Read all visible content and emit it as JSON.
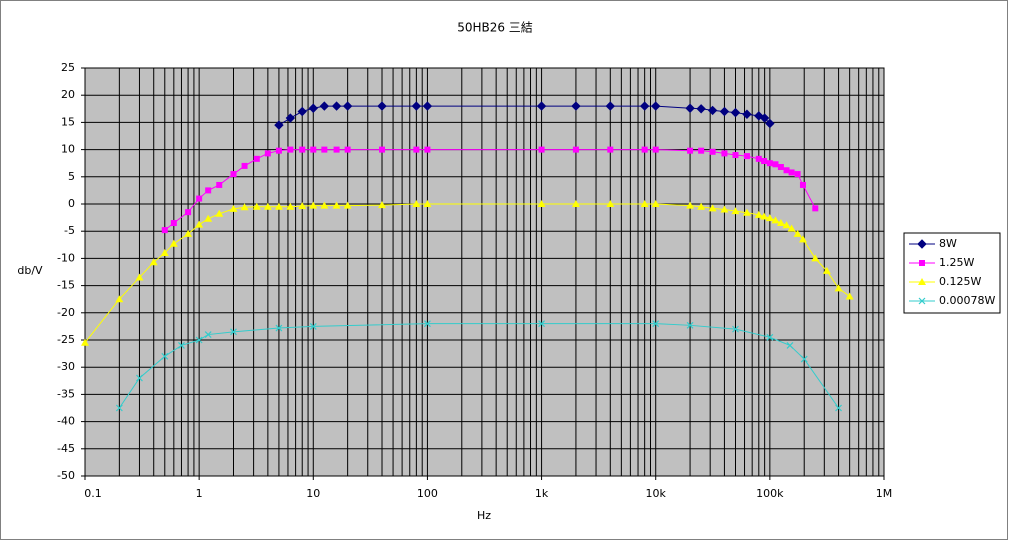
{
  "chart_data": {
    "type": "line",
    "title": "50HB26 三結",
    "x_label": "Hz",
    "y_label": "db/V",
    "xscale": "log",
    "xlim": [
      0.1,
      1000000
    ],
    "xticks": [
      0.1,
      1,
      10,
      100,
      {
        "value": 1000,
        "label": "1k"
      },
      {
        "value": 10000,
        "label": "10k"
      },
      {
        "value": 100000,
        "label": "100k"
      },
      {
        "value": 1000000,
        "label": "1M"
      }
    ],
    "ylim": [
      -50,
      25
    ],
    "yticks": [
      -50,
      -45,
      -40,
      -35,
      -30,
      -25,
      -20,
      -15,
      -10,
      -5,
      0,
      5,
      10,
      15,
      20,
      25
    ],
    "grid": true,
    "minor_grid": true,
    "plot_background": "#c0c0c0",
    "legend": "right",
    "series": [
      {
        "name": "8W",
        "color": "#000080",
        "marker": "diamond",
        "x": [
          5,
          6.3,
          8,
          10,
          12.5,
          16,
          20,
          40,
          80,
          100,
          1000,
          2000,
          4000,
          8000,
          10000,
          20000,
          25000,
          31500,
          40000,
          50000,
          63000,
          80000,
          90000,
          100000
        ],
        "values": [
          14.5,
          15.8,
          17,
          17.6,
          18,
          18,
          18,
          18,
          18,
          18,
          18,
          18,
          18,
          18,
          18,
          17.6,
          17.5,
          17.2,
          17,
          16.8,
          16.5,
          16.2,
          15.8,
          14.8
        ]
      },
      {
        "name": "1.25W",
        "color": "#ff00ff",
        "marker": "square",
        "x": [
          0.5,
          0.6,
          0.8,
          1,
          1.2,
          1.5,
          2,
          2.5,
          3.2,
          4,
          5,
          6.3,
          8,
          10,
          12.5,
          16,
          20,
          40,
          80,
          100,
          1000,
          2000,
          4000,
          8000,
          10000,
          20000,
          25000,
          31500,
          40000,
          50000,
          63000,
          80000,
          89000,
          100000,
          112000,
          125000,
          140000,
          155000,
          175000,
          195000,
          250000
        ],
        "values": [
          -4.8,
          -3.5,
          -1.5,
          1,
          2.5,
          3.5,
          5.5,
          7,
          8.3,
          9.3,
          9.8,
          10,
          10,
          10,
          10,
          10,
          10,
          10,
          10,
          10,
          10,
          10,
          10,
          10,
          10,
          9.8,
          9.8,
          9.6,
          9.3,
          9,
          8.8,
          8.3,
          7.9,
          7.5,
          7.3,
          6.8,
          6.2,
          5.8,
          5.5,
          3.5,
          -0.8
        ]
      },
      {
        "name": "0.125W",
        "color": "#ffff00",
        "marker": "triangle",
        "x": [
          0.1,
          0.2,
          0.3,
          0.4,
          0.5,
          0.6,
          0.8,
          1,
          1.2,
          1.5,
          2,
          2.5,
          3.2,
          4,
          5,
          6.3,
          8,
          10,
          12.5,
          16,
          20,
          40,
          80,
          100,
          1000,
          2000,
          4000,
          8000,
          10000,
          20000,
          25000,
          31500,
          40000,
          50000,
          63000,
          80000,
          89000,
          100000,
          112000,
          125000,
          140000,
          155000,
          175000,
          195000,
          250000,
          316000,
          400000,
          500000
        ],
        "values": [
          -25.5,
          -17.5,
          -13.5,
          -10.7,
          -9,
          -7.3,
          -5.5,
          -3.8,
          -2.7,
          -1.8,
          -0.9,
          -0.6,
          -0.5,
          -0.5,
          -0.5,
          -0.5,
          -0.4,
          -0.3,
          -0.3,
          -0.3,
          -0.3,
          -0.2,
          0,
          0,
          0,
          0,
          0,
          0,
          0,
          -0.3,
          -0.5,
          -0.8,
          -1,
          -1.3,
          -1.6,
          -2,
          -2.3,
          -2.6,
          -3,
          -3.5,
          -3.9,
          -4.5,
          -5.5,
          -6.5,
          -10,
          -12.3,
          -15.5,
          -17
        ]
      },
      {
        "name": "0.00078W",
        "color": "#33cccc",
        "marker": "x",
        "x": [
          0.2,
          0.3,
          0.5,
          0.7,
          1,
          1.2,
          2,
          5,
          10,
          100,
          1000,
          10000,
          20000,
          50000,
          100000,
          150000,
          200000,
          400000
        ],
        "values": [
          -37.5,
          -32,
          -28,
          -26,
          -25,
          -24,
          -23.5,
          -22.8,
          -22.5,
          -22,
          -22,
          -22,
          -22.3,
          -23,
          -24.5,
          -26,
          -28.5,
          -37.5
        ]
      }
    ]
  }
}
